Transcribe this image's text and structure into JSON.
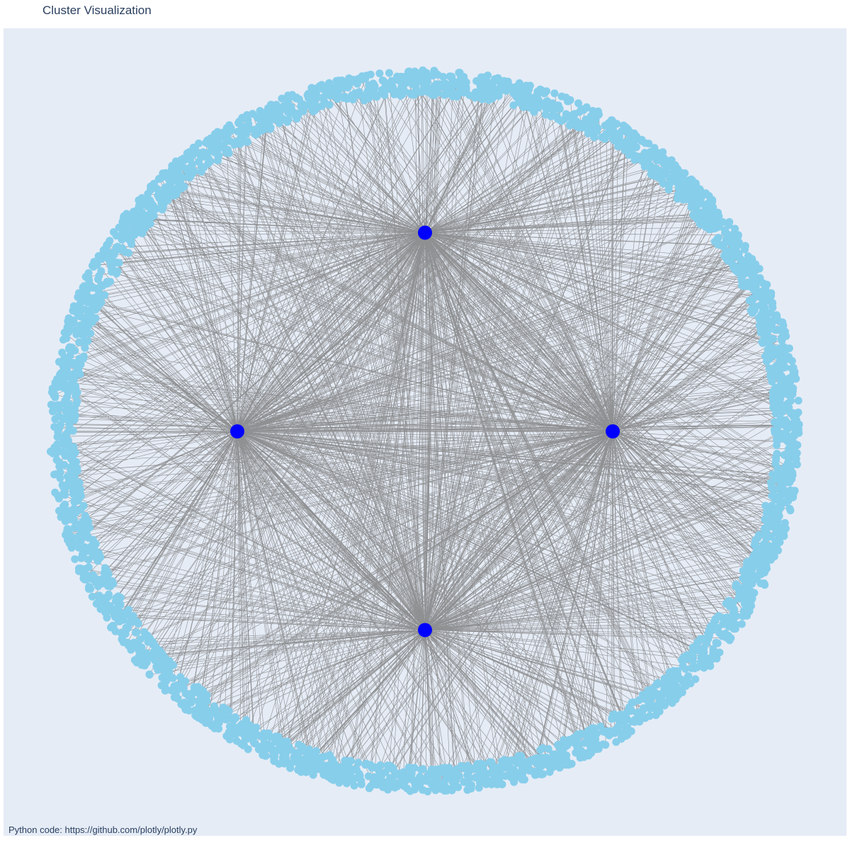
{
  "title": "Cluster Visualization",
  "annotation": "Python code:  https://github.com/plotly/plotly.py",
  "colors": {
    "background": "#e5ecf6",
    "edge": "#808080",
    "leaf_node": "#87ceeb",
    "hub_node": "#0000ff",
    "text": "#2a3f5f"
  },
  "chart_data": {
    "type": "network",
    "layout": "radial",
    "hub_count": 4,
    "leaf_count": 3000,
    "hubs": [
      {
        "x": 0.0,
        "y": 0.55
      },
      {
        "x": -0.5,
        "y": 0.0
      },
      {
        "x": 0.5,
        "y": 0.0
      },
      {
        "x": 0.0,
        "y": -0.55
      }
    ],
    "leaf_ring_inner_radius": 0.93,
    "leaf_ring_outer_radius": 1.0
  }
}
